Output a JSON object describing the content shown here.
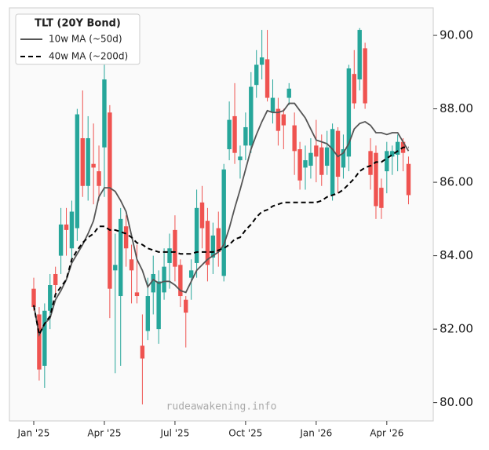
{
  "chart_data": {
    "type": "candlestick",
    "legend_title": "TLT (20Y Bond)",
    "watermark": "rudeawakening.info",
    "categories": [
      "Jan '25",
      null,
      null,
      null,
      null,
      null,
      null,
      null,
      null,
      null,
      null,
      null,
      null,
      "Apr '25",
      null,
      null,
      null,
      null,
      null,
      null,
      null,
      null,
      null,
      null,
      null,
      null,
      "Jul '25",
      null,
      null,
      null,
      null,
      null,
      null,
      null,
      null,
      null,
      null,
      null,
      null,
      "Oct '25",
      null,
      null,
      null,
      null,
      null,
      null,
      null,
      null,
      null,
      null,
      null,
      null,
      "Jan '26",
      null,
      null,
      null,
      null,
      null,
      null,
      null,
      null,
      null,
      null,
      null,
      null,
      "Apr '26",
      null,
      null,
      null,
      null
    ],
    "open": [
      83.1,
      82.4,
      81.0,
      82.5,
      83.5,
      84.0,
      84.85,
      84.2,
      84.75,
      87.2,
      85.9,
      86.5,
      86.3,
      86.95,
      87.9,
      83.6,
      82.9,
      84.8,
      83.9,
      83.0,
      81.55,
      81.95,
      83.0,
      82.0,
      83.0,
      83.8,
      84.7,
      83.75,
      82.8,
      83.4,
      83.8,
      85.45,
      84.95,
      83.95,
      84.75,
      83.45,
      86.9,
      87.8,
      86.6,
      87.0,
      87.0,
      88.65,
      89.2,
      89.35,
      87.9,
      88.0,
      87.85,
      88.3,
      87.55,
      86.9,
      86.4,
      86.45,
      87.0,
      86.95,
      86.45,
      85.65,
      87.4,
      86.4,
      86.7,
      88.95,
      88.8,
      89.65,
      86.85,
      86.8,
      85.85,
      86.3,
      86.7,
      86.75,
      87.1,
      86.5
    ],
    "high": [
      83.4,
      82.6,
      82.7,
      83.5,
      83.7,
      85.3,
      85.3,
      85.5,
      88.0,
      88.5,
      87.8,
      87.6,
      87.0,
      89.3,
      88.1,
      84.6,
      85.3,
      85.1,
      84.3,
      84.3,
      82.4,
      83.4,
      84.0,
      83.6,
      84.2,
      84.6,
      85.1,
      83.9,
      82.9,
      83.9,
      85.8,
      85.9,
      85.3,
      84.9,
      85.2,
      86.5,
      88.2,
      88.7,
      87.0,
      87.9,
      89.0,
      89.6,
      90.15,
      90.15,
      88.8,
      88.3,
      88.0,
      88.7,
      87.9,
      87.1,
      87.0,
      87.2,
      87.7,
      87.3,
      87.4,
      87.6,
      87.5,
      87.3,
      89.2,
      89.6,
      90.2,
      89.8,
      87.2,
      87.0,
      86.1,
      87.1,
      87.0,
      87.3,
      87.2,
      86.7
    ],
    "low": [
      82.5,
      80.6,
      80.4,
      82.0,
      82.9,
      83.5,
      84.0,
      83.8,
      84.4,
      85.6,
      85.5,
      85.4,
      85.5,
      85.6,
      82.3,
      80.8,
      81.0,
      83.7,
      82.7,
      82.7,
      79.95,
      81.7,
      82.4,
      81.6,
      82.8,
      83.1,
      83.3,
      82.6,
      81.5,
      82.8,
      83.4,
      84.2,
      83.3,
      83.5,
      83.7,
      83.3,
      86.6,
      86.5,
      86.1,
      86.6,
      86.8,
      88.3,
      88.8,
      88.2,
      87.6,
      87.0,
      86.9,
      88.1,
      86.2,
      85.8,
      85.8,
      86.1,
      86.0,
      85.9,
      86.2,
      85.5,
      85.7,
      86.1,
      86.3,
      88.0,
      88.5,
      88.0,
      85.8,
      85.0,
      85.0,
      85.7,
      86.2,
      86.3,
      86.3,
      85.4
    ],
    "close": [
      82.6,
      80.9,
      82.5,
      83.2,
      83.2,
      84.85,
      84.7,
      85.2,
      87.85,
      85.9,
      87.2,
      86.4,
      85.9,
      88.8,
      83.1,
      83.75,
      85.0,
      84.2,
      83.6,
      82.9,
      81.2,
      82.9,
      83.5,
      83.3,
      83.7,
      84.2,
      83.7,
      82.9,
      82.45,
      83.6,
      85.3,
      84.75,
      83.75,
      84.55,
      84.1,
      86.35,
      87.7,
      86.8,
      86.7,
      87.5,
      88.6,
      89.2,
      89.4,
      88.3,
      88.3,
      87.4,
      87.55,
      88.55,
      86.85,
      86.05,
      86.6,
      86.8,
      86.7,
      86.2,
      86.95,
      87.45,
      86.15,
      86.9,
      89.1,
      88.15,
      90.15,
      88.15,
      86.2,
      85.35,
      85.3,
      86.85,
      86.85,
      87.1,
      86.8,
      85.65
    ],
    "up_color": "#26a69a",
    "down_color": "#ef5350",
    "series": [
      {
        "name": "10w MA (~50d)",
        "color": "#555555",
        "dash": false,
        "values": [
          82.65,
          81.85,
          82.15,
          82.3,
          82.8,
          83.05,
          83.35,
          83.8,
          84.05,
          84.3,
          84.6,
          84.95,
          85.6,
          85.85,
          85.85,
          85.75,
          85.5,
          85.2,
          84.55,
          83.9,
          83.6,
          83.15,
          83.35,
          83.25,
          83.3,
          83.3,
          83.2,
          83.05,
          83.0,
          83.3,
          83.6,
          83.75,
          83.9,
          84.0,
          84.1,
          84.3,
          84.75,
          85.3,
          85.8,
          86.35,
          86.9,
          87.3,
          87.65,
          87.95,
          87.9,
          87.9,
          87.95,
          88.15,
          88.15,
          87.95,
          87.75,
          87.45,
          87.15,
          87.1,
          87.05,
          86.9,
          86.7,
          86.8,
          87.05,
          87.45,
          87.6,
          87.65,
          87.55,
          87.35,
          87.35,
          87.3,
          87.35,
          87.35,
          87.1,
          86.85
        ]
      },
      {
        "name": "40w MA (~200d)",
        "color": "#000000",
        "dash": true,
        "values": [
          82.65,
          81.85,
          82.15,
          82.35,
          82.95,
          83.15,
          83.35,
          83.9,
          84.15,
          84.35,
          84.5,
          84.6,
          84.8,
          84.8,
          84.7,
          84.7,
          84.65,
          84.6,
          84.5,
          84.35,
          84.3,
          84.2,
          84.15,
          84.1,
          84.1,
          84.1,
          84.1,
          84.05,
          84.05,
          84.05,
          84.1,
          84.1,
          84.1,
          84.1,
          84.15,
          84.2,
          84.3,
          84.45,
          84.5,
          84.7,
          84.85,
          85.05,
          85.2,
          85.25,
          85.35,
          85.4,
          85.45,
          85.45,
          85.45,
          85.45,
          85.45,
          85.45,
          85.45,
          85.5,
          85.6,
          85.65,
          85.7,
          85.8,
          85.95,
          86.1,
          86.3,
          86.4,
          86.45,
          86.55,
          86.55,
          86.65,
          86.75,
          86.85,
          86.95,
          86.95
        ]
      }
    ],
    "ylim": [
      79.5,
      90.75
    ],
    "yticks": [
      {
        "value": 80,
        "label": "80.00"
      },
      {
        "value": 82,
        "label": "82.00"
      },
      {
        "value": 84,
        "label": "84.00"
      },
      {
        "value": 86,
        "label": "86.00"
      },
      {
        "value": 88,
        "label": "88.00"
      },
      {
        "value": 90,
        "label": "90.00"
      }
    ]
  }
}
